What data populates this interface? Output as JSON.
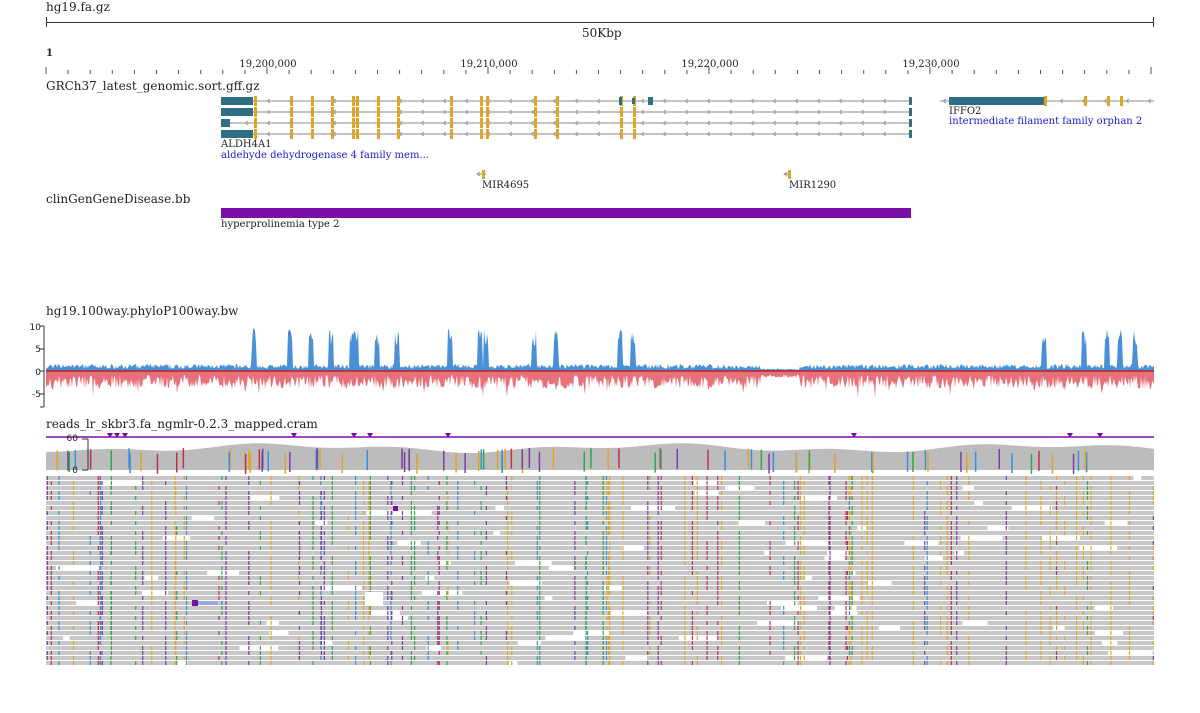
{
  "header": {
    "assembly": "hg19.fa.gz",
    "span_label": "50Kbp",
    "chromosome": "1"
  },
  "ruler": {
    "ticks": [
      "19,200,000",
      "19,210,000",
      "19,220,000",
      "19,230,000"
    ]
  },
  "tracks": {
    "genes": {
      "name": "GRCh37_latest_genomic.sort.gff.gz",
      "items": [
        {
          "symbol": "ALDH4A1",
          "description": "aldehyde dehydrogenase 4 family mem..."
        },
        {
          "symbol": "IFFO2",
          "description": "intermediate filament family orphan 2"
        },
        {
          "symbol": "MIR4695",
          "description": ""
        },
        {
          "symbol": "MIR1290",
          "description": ""
        }
      ]
    },
    "clingen": {
      "name": "clinGenGeneDisease.bb",
      "feature_label": "hyperprolinemia type 2",
      "color": "#7a0fa8"
    },
    "phylop": {
      "name": "hg19.100way.phyloP100way.bw",
      "y_ticks": [
        "10",
        "5",
        "0",
        "-5"
      ],
      "positive_color": "#4a90d9",
      "negative_color": "#e8707a"
    },
    "reads": {
      "name": "reads_lr_skbr3.fa_ngmlr-0.2.3_mapped.cram",
      "coverage_ticks": [
        "60",
        "0"
      ],
      "read_color": "#c8c8c8"
    }
  }
}
